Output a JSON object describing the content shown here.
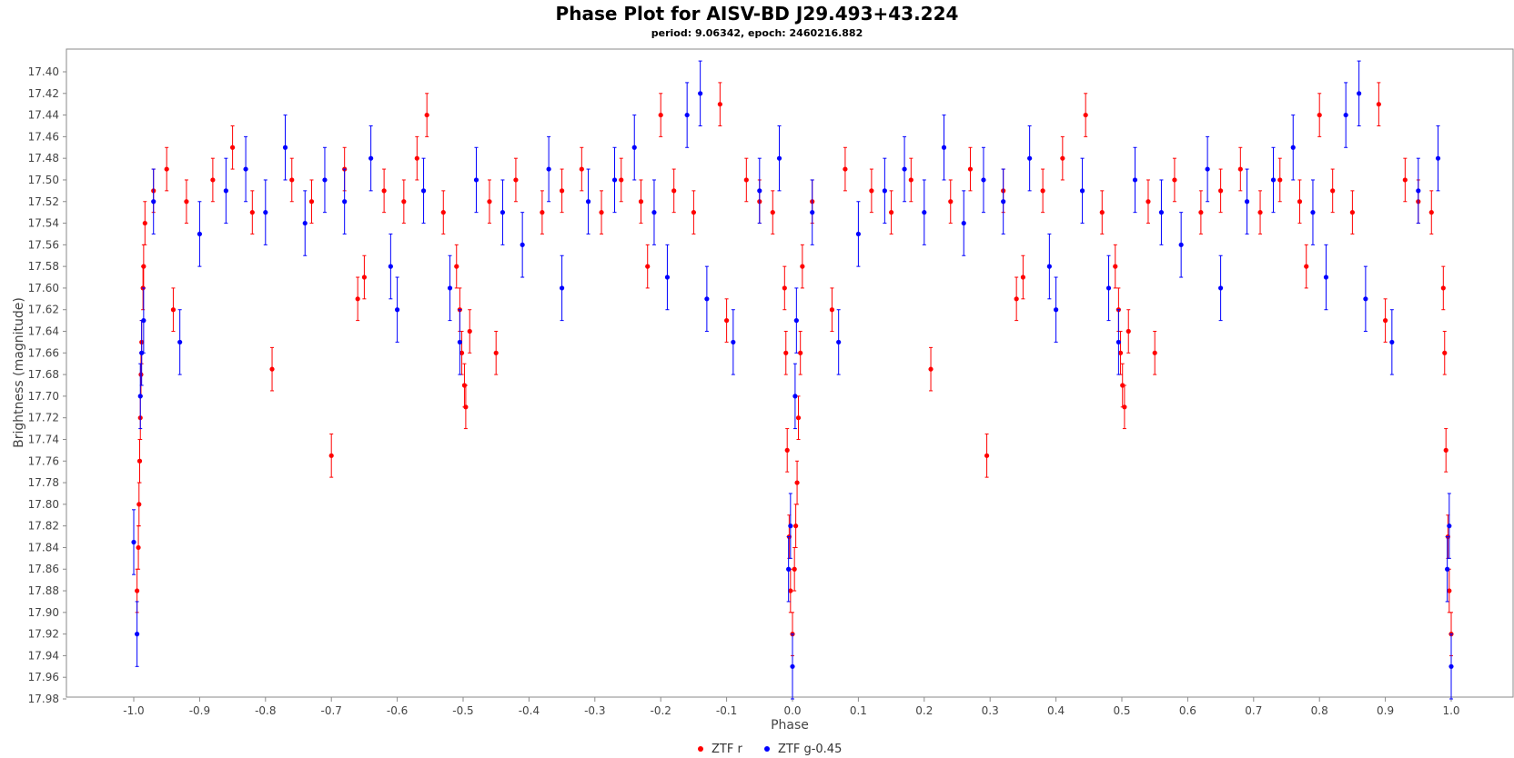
{
  "chart_data": {
    "type": "scatter",
    "title": "Phase Plot for AISV-BD J29.493+43.224",
    "subtitle": "period: 9.06342, epoch: 2460216.882",
    "xlabel": "Phase",
    "ylabel": "Brightness (magnitude)",
    "xlim": [
      -1.1,
      1.1
    ],
    "ylim": [
      17.98,
      17.39
    ],
    "y_inverted": true,
    "x_ticks": [
      "-1.0",
      "-0.9",
      "-0.8",
      "-0.7",
      "-0.6",
      "-0.5",
      "-0.4",
      "-0.3",
      "-0.2",
      "-0.1",
      "0.0",
      "0.1",
      "0.2",
      "0.3",
      "0.4",
      "0.5",
      "0.6",
      "0.7",
      "0.8",
      "0.9",
      "1.0"
    ],
    "y_ticks": [
      "17.40",
      "17.42",
      "17.44",
      "17.46",
      "17.48",
      "17.50",
      "17.52",
      "17.54",
      "17.56",
      "17.58",
      "17.60",
      "17.62",
      "17.64",
      "17.66",
      "17.68",
      "17.70",
      "17.72",
      "17.74",
      "17.76",
      "17.78",
      "17.80",
      "17.82",
      "17.84",
      "17.86",
      "17.88",
      "17.90",
      "17.92",
      "17.94",
      "17.96",
      "17.98"
    ],
    "grid": false,
    "legend_position": "bottom-center",
    "series": [
      {
        "name": "ZTF r",
        "color": "#ff0000",
        "points": [
          [
            -0.995,
            17.88,
            0.02
          ],
          [
            -0.993,
            17.84,
            0.02
          ],
          [
            -0.992,
            17.8,
            0.02
          ],
          [
            -0.991,
            17.76,
            0.02
          ],
          [
            -0.99,
            17.72,
            0.02
          ],
          [
            -0.989,
            17.68,
            0.02
          ],
          [
            -0.988,
            17.65,
            0.02
          ],
          [
            -0.986,
            17.6,
            0.02
          ],
          [
            -0.985,
            17.58,
            0.02
          ],
          [
            -0.983,
            17.54,
            0.02
          ],
          [
            -0.97,
            17.51,
            0.02
          ],
          [
            -0.95,
            17.49,
            0.02
          ],
          [
            -0.94,
            17.62,
            0.02
          ],
          [
            -0.92,
            17.52,
            0.02
          ],
          [
            -0.88,
            17.5,
            0.02
          ],
          [
            -0.85,
            17.47,
            0.02
          ],
          [
            -0.82,
            17.53,
            0.02
          ],
          [
            -0.79,
            17.675,
            0.02
          ],
          [
            -0.76,
            17.5,
            0.02
          ],
          [
            -0.73,
            17.52,
            0.02
          ],
          [
            -0.7,
            17.755,
            0.02
          ],
          [
            -0.68,
            17.49,
            0.02
          ],
          [
            -0.66,
            17.61,
            0.02
          ],
          [
            -0.65,
            17.59,
            0.02
          ],
          [
            -0.62,
            17.51,
            0.02
          ],
          [
            -0.59,
            17.52,
            0.02
          ],
          [
            -0.57,
            17.48,
            0.02
          ],
          [
            -0.555,
            17.44,
            0.02
          ],
          [
            -0.53,
            17.53,
            0.02
          ],
          [
            -0.51,
            17.58,
            0.02
          ],
          [
            -0.505,
            17.62,
            0.02
          ],
          [
            -0.502,
            17.66,
            0.02
          ],
          [
            -0.498,
            17.69,
            0.02
          ],
          [
            -0.496,
            17.71,
            0.02
          ],
          [
            -0.49,
            17.64,
            0.02
          ],
          [
            -0.46,
            17.52,
            0.02
          ],
          [
            -0.45,
            17.66,
            0.02
          ],
          [
            -0.42,
            17.5,
            0.02
          ],
          [
            -0.38,
            17.53,
            0.02
          ],
          [
            -0.35,
            17.51,
            0.02
          ],
          [
            -0.32,
            17.49,
            0.02
          ],
          [
            -0.29,
            17.53,
            0.02
          ],
          [
            -0.26,
            17.5,
            0.02
          ],
          [
            -0.23,
            17.52,
            0.02
          ],
          [
            -0.22,
            17.58,
            0.02
          ],
          [
            -0.2,
            17.44,
            0.02
          ],
          [
            -0.18,
            17.51,
            0.02
          ],
          [
            -0.15,
            17.53,
            0.02
          ],
          [
            -0.11,
            17.43,
            0.02
          ],
          [
            -0.1,
            17.63,
            0.02
          ],
          [
            -0.07,
            17.5,
            0.02
          ],
          [
            -0.05,
            17.52,
            0.02
          ],
          [
            -0.03,
            17.53,
            0.02
          ],
          [
            -0.012,
            17.6,
            0.02
          ],
          [
            -0.01,
            17.66,
            0.02
          ],
          [
            -0.008,
            17.75,
            0.02
          ],
          [
            -0.005,
            17.83,
            0.02
          ],
          [
            -0.003,
            17.88,
            0.02
          ],
          [
            0.0,
            17.92,
            0.02
          ],
          [
            0.003,
            17.86,
            0.02
          ],
          [
            0.005,
            17.82,
            0.02
          ],
          [
            0.007,
            17.78,
            0.02
          ],
          [
            0.009,
            17.72,
            0.02
          ],
          [
            0.012,
            17.66,
            0.02
          ],
          [
            0.015,
            17.58,
            0.02
          ],
          [
            0.03,
            17.52,
            0.02
          ],
          [
            0.06,
            17.62,
            0.02
          ],
          [
            0.08,
            17.49,
            0.02
          ],
          [
            0.12,
            17.51,
            0.02
          ],
          [
            0.15,
            17.53,
            0.02
          ],
          [
            0.18,
            17.5,
            0.02
          ],
          [
            0.21,
            17.675,
            0.02
          ],
          [
            0.24,
            17.52,
            0.02
          ],
          [
            0.27,
            17.49,
            0.02
          ],
          [
            0.295,
            17.755,
            0.02
          ],
          [
            0.32,
            17.51,
            0.02
          ],
          [
            0.34,
            17.61,
            0.02
          ],
          [
            0.35,
            17.59,
            0.02
          ],
          [
            0.38,
            17.51,
            0.02
          ],
          [
            0.41,
            17.48,
            0.02
          ],
          [
            0.445,
            17.44,
            0.02
          ],
          [
            0.47,
            17.53,
            0.02
          ],
          [
            0.49,
            17.58,
            0.02
          ],
          [
            0.495,
            17.62,
            0.02
          ],
          [
            0.498,
            17.66,
            0.02
          ],
          [
            0.501,
            17.69,
            0.02
          ],
          [
            0.504,
            17.71,
            0.02
          ],
          [
            0.51,
            17.64,
            0.02
          ],
          [
            0.54,
            17.52,
            0.02
          ],
          [
            0.55,
            17.66,
            0.02
          ],
          [
            0.58,
            17.5,
            0.02
          ],
          [
            0.62,
            17.53,
            0.02
          ],
          [
            0.65,
            17.51,
            0.02
          ],
          [
            0.68,
            17.49,
            0.02
          ],
          [
            0.71,
            17.53,
            0.02
          ],
          [
            0.74,
            17.5,
            0.02
          ],
          [
            0.77,
            17.52,
            0.02
          ],
          [
            0.78,
            17.58,
            0.02
          ],
          [
            0.8,
            17.44,
            0.02
          ],
          [
            0.82,
            17.51,
            0.02
          ],
          [
            0.85,
            17.53,
            0.02
          ],
          [
            0.89,
            17.43,
            0.02
          ],
          [
            0.9,
            17.63,
            0.02
          ],
          [
            0.93,
            17.5,
            0.02
          ],
          [
            0.95,
            17.52,
            0.02
          ],
          [
            0.97,
            17.53,
            0.02
          ],
          [
            0.988,
            17.6,
            0.02
          ],
          [
            0.99,
            17.66,
            0.02
          ],
          [
            0.992,
            17.75,
            0.02
          ],
          [
            0.995,
            17.83,
            0.02
          ],
          [
            0.997,
            17.88,
            0.02
          ],
          [
            1.0,
            17.92,
            0.02
          ]
        ]
      },
      {
        "name": "ZTF g-0.45",
        "color": "#0000ff",
        "points": [
          [
            -1.0,
            17.835,
            0.03
          ],
          [
            -0.995,
            17.92,
            0.03
          ],
          [
            -0.99,
            17.7,
            0.03
          ],
          [
            -0.988,
            17.66,
            0.03
          ],
          [
            -0.985,
            17.63,
            0.03
          ],
          [
            -0.97,
            17.52,
            0.03
          ],
          [
            -0.93,
            17.65,
            0.03
          ],
          [
            -0.9,
            17.55,
            0.03
          ],
          [
            -0.86,
            17.51,
            0.03
          ],
          [
            -0.83,
            17.49,
            0.03
          ],
          [
            -0.8,
            17.53,
            0.03
          ],
          [
            -0.77,
            17.47,
            0.03
          ],
          [
            -0.74,
            17.54,
            0.03
          ],
          [
            -0.71,
            17.5,
            0.03
          ],
          [
            -0.68,
            17.52,
            0.03
          ],
          [
            -0.64,
            17.48,
            0.03
          ],
          [
            -0.61,
            17.58,
            0.03
          ],
          [
            -0.6,
            17.62,
            0.03
          ],
          [
            -0.56,
            17.51,
            0.03
          ],
          [
            -0.52,
            17.6,
            0.03
          ],
          [
            -0.505,
            17.65,
            0.03
          ],
          [
            -0.48,
            17.5,
            0.03
          ],
          [
            -0.44,
            17.53,
            0.03
          ],
          [
            -0.41,
            17.56,
            0.03
          ],
          [
            -0.37,
            17.49,
            0.03
          ],
          [
            -0.35,
            17.6,
            0.03
          ],
          [
            -0.31,
            17.52,
            0.03
          ],
          [
            -0.27,
            17.5,
            0.03
          ],
          [
            -0.24,
            17.47,
            0.03
          ],
          [
            -0.21,
            17.53,
            0.03
          ],
          [
            -0.19,
            17.59,
            0.03
          ],
          [
            -0.16,
            17.44,
            0.03
          ],
          [
            -0.14,
            17.42,
            0.03
          ],
          [
            -0.13,
            17.61,
            0.03
          ],
          [
            -0.09,
            17.65,
            0.03
          ],
          [
            -0.05,
            17.51,
            0.03
          ],
          [
            -0.02,
            17.48,
            0.03
          ],
          [
            -0.006,
            17.86,
            0.03
          ],
          [
            -0.003,
            17.82,
            0.03
          ],
          [
            0.0,
            17.95,
            0.03
          ],
          [
            0.004,
            17.7,
            0.03
          ],
          [
            0.006,
            17.63,
            0.03
          ],
          [
            0.03,
            17.53,
            0.03
          ],
          [
            0.07,
            17.65,
            0.03
          ],
          [
            0.1,
            17.55,
            0.03
          ],
          [
            0.14,
            17.51,
            0.03
          ],
          [
            0.17,
            17.49,
            0.03
          ],
          [
            0.2,
            17.53,
            0.03
          ],
          [
            0.23,
            17.47,
            0.03
          ],
          [
            0.26,
            17.54,
            0.03
          ],
          [
            0.29,
            17.5,
            0.03
          ],
          [
            0.32,
            17.52,
            0.03
          ],
          [
            0.36,
            17.48,
            0.03
          ],
          [
            0.39,
            17.58,
            0.03
          ],
          [
            0.4,
            17.62,
            0.03
          ],
          [
            0.44,
            17.51,
            0.03
          ],
          [
            0.48,
            17.6,
            0.03
          ],
          [
            0.495,
            17.65,
            0.03
          ],
          [
            0.52,
            17.5,
            0.03
          ],
          [
            0.56,
            17.53,
            0.03
          ],
          [
            0.59,
            17.56,
            0.03
          ],
          [
            0.63,
            17.49,
            0.03
          ],
          [
            0.65,
            17.6,
            0.03
          ],
          [
            0.69,
            17.52,
            0.03
          ],
          [
            0.73,
            17.5,
            0.03
          ],
          [
            0.76,
            17.47,
            0.03
          ],
          [
            0.79,
            17.53,
            0.03
          ],
          [
            0.81,
            17.59,
            0.03
          ],
          [
            0.84,
            17.44,
            0.03
          ],
          [
            0.86,
            17.42,
            0.03
          ],
          [
            0.87,
            17.61,
            0.03
          ],
          [
            0.91,
            17.65,
            0.03
          ],
          [
            0.95,
            17.51,
            0.03
          ],
          [
            0.98,
            17.48,
            0.03
          ],
          [
            0.994,
            17.86,
            0.03
          ],
          [
            0.997,
            17.82,
            0.03
          ],
          [
            1.0,
            17.95,
            0.03
          ]
        ]
      }
    ]
  }
}
